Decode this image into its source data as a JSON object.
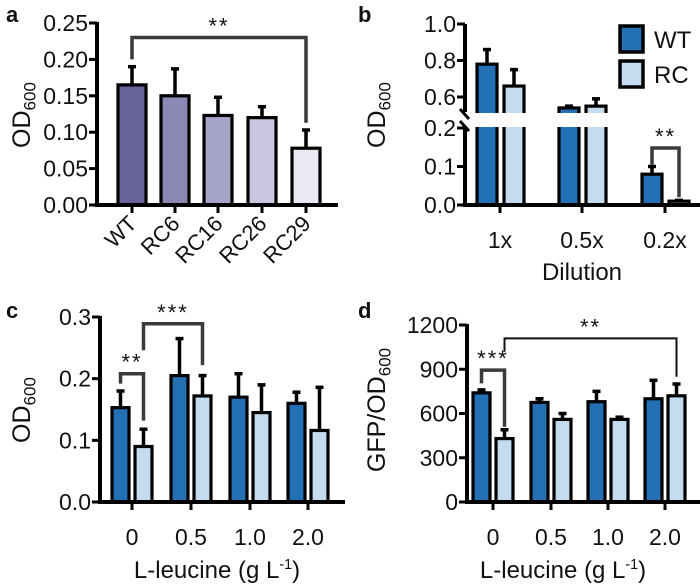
{
  "chart_data": [
    {
      "panel": "a",
      "type": "bar",
      "ylabel": "OD600",
      "xlabel": "",
      "ylim": [
        0,
        0.25
      ],
      "yticks": [
        "0.00",
        "0.05",
        "0.10",
        "0.15",
        "0.20",
        "0.25"
      ],
      "categories": [
        "WT",
        "RC6",
        "RC16",
        "RC26",
        "RC29"
      ],
      "series": [
        {
          "values": [
            0.165,
            0.15,
            0.123,
            0.12,
            0.078
          ],
          "errors_upper": [
            0.19,
            0.187,
            0.148,
            0.135,
            0.103
          ],
          "colors": [
            "#65639a",
            "#8a88b5",
            "#a6a4c8",
            "#c8c7df",
            "#e9e9f3"
          ]
        }
      ],
      "brackets": [
        {
          "label": "**",
          "from": [
            0,
            0
          ],
          "to": [
            4,
            0
          ],
          "y": 0.23,
          "left_end": 0.2,
          "right_end": 0.113
        }
      ],
      "grid": false
    },
    {
      "panel": "b",
      "type": "bar",
      "ylabel": "OD600",
      "xlabel": "Dilution",
      "ylim": [
        0,
        1.0
      ],
      "axis_break": [
        0.2,
        0.5
      ],
      "yticks": [
        "0.0",
        "0.1",
        "0.2",
        "0.6",
        "0.8",
        "1.0"
      ],
      "categories": [
        "1x",
        "0.5x",
        "0.2x"
      ],
      "series": [
        {
          "name": "WT",
          "color": "#2370b5",
          "values": [
            0.78,
            0.54,
            0.08
          ],
          "errors_upper": [
            0.86,
            0.55,
            0.1
          ]
        },
        {
          "name": "RC",
          "color": "#c5dbf0",
          "values": [
            0.66,
            0.55,
            0.01
          ],
          "errors_upper": [
            0.75,
            0.59,
            0.012
          ]
        }
      ],
      "brackets": [
        {
          "label": "**",
          "from": [
            2,
            0
          ],
          "to": [
            2,
            1
          ],
          "y": 0.148,
          "left_end": 0.105,
          "right_end": 0.02
        }
      ],
      "legend": "top-right",
      "grid": false
    },
    {
      "panel": "c",
      "type": "bar",
      "ylabel": "OD600",
      "xlabel": "L-leucine (g L-1)",
      "ylim": [
        0,
        0.3
      ],
      "yticks": [
        "0.0",
        "0.1",
        "0.2",
        "0.3"
      ],
      "categories": [
        "0",
        "0.5",
        "1.0",
        "2.0"
      ],
      "series": [
        {
          "name": "WT",
          "color": "#2370b5",
          "values": [
            0.153,
            0.205,
            0.17,
            0.16
          ],
          "errors_upper": [
            0.18,
            0.265,
            0.208,
            0.178
          ]
        },
        {
          "name": "RC",
          "color": "#c5dbf0",
          "values": [
            0.09,
            0.172,
            0.145,
            0.116
          ],
          "errors_upper": [
            0.118,
            0.205,
            0.19,
            0.186
          ]
        }
      ],
      "brackets": [
        {
          "label": "**",
          "from": [
            0,
            0
          ],
          "to": [
            0,
            1
          ],
          "y": 0.208,
          "left_end": 0.192,
          "right_end": 0.132
        },
        {
          "label": "***",
          "from": [
            0,
            1
          ],
          "to": [
            1,
            1
          ],
          "y": 0.289,
          "left_end": 0.246,
          "right_end": 0.222
        }
      ],
      "grid": false
    },
    {
      "panel": "d",
      "type": "bar",
      "ylabel": "GFP/OD600",
      "xlabel": "L-leucine (g L-1)",
      "ylim": [
        0,
        1200
      ],
      "yticks": [
        "0",
        "300",
        "600",
        "900",
        "1200"
      ],
      "categories": [
        "0",
        "0.5",
        "1.0",
        "2.0"
      ],
      "series": [
        {
          "name": "WT",
          "color": "#2370b5",
          "values": [
            740,
            675,
            680,
            700
          ],
          "errors_upper": [
            760,
            700,
            750,
            825
          ]
        },
        {
          "name": "RC",
          "color": "#c5dbf0",
          "values": [
            430,
            560,
            560,
            720
          ],
          "errors_upper": [
            490,
            600,
            575,
            800
          ]
        }
      ],
      "brackets": [
        {
          "label": "***",
          "from": [
            0,
            0
          ],
          "to": [
            0,
            1
          ],
          "y": 894,
          "left_end": 804,
          "right_end": 510
        },
        {
          "label": "**",
          "from": [
            0,
            1
          ],
          "to": [
            3,
            1
          ],
          "y": 1109,
          "left_end": 1019,
          "right_end": 849
        }
      ],
      "grid": false
    }
  ]
}
